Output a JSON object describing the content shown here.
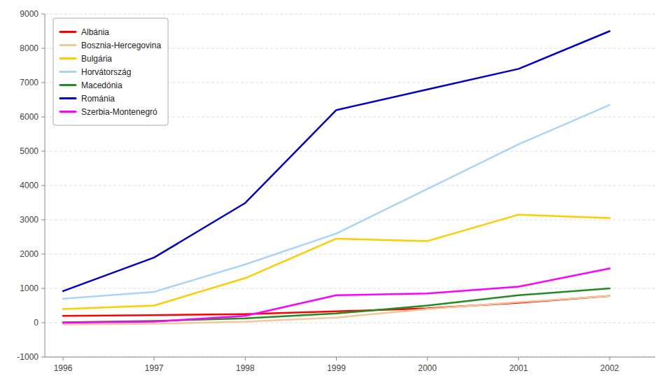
{
  "chart_data": {
    "type": "line",
    "x": [
      1996,
      1997,
      1998,
      1999,
      2000,
      2001,
      2002
    ],
    "series": [
      {
        "name": "Albánia",
        "color": "#ff0000",
        "values": [
          200,
          220,
          250,
          330,
          420,
          580,
          780
        ]
      },
      {
        "name": "Bosznia-Hercegovina",
        "color": "#f4c79a",
        "values": [
          -50,
          -30,
          30,
          150,
          400,
          600,
          780
        ]
      },
      {
        "name": "Bulgária",
        "color": "#ffcc00",
        "values": [
          400,
          500,
          1300,
          2450,
          2380,
          3150,
          3050
        ]
      },
      {
        "name": "Horvátország",
        "color": "#aad4f5",
        "values": [
          700,
          900,
          1700,
          2600,
          3900,
          5200,
          6350
        ]
      },
      {
        "name": "Macedónia",
        "color": "#228B22",
        "values": [
          10,
          50,
          130,
          270,
          500,
          800,
          1000
        ]
      },
      {
        "name": "Románia",
        "color": "#0000cc",
        "values": [
          920,
          1900,
          3490,
          6200,
          6800,
          7400,
          8500
        ]
      },
      {
        "name": "Szerbia-Montenegró",
        "color": "#ff00ff",
        "values": [
          0,
          30,
          200,
          800,
          850,
          1050,
          1580
        ]
      }
    ],
    "xlim": [
      1995.8,
      2002.5
    ],
    "xticks": [
      1996,
      1997,
      1998,
      1999,
      2000,
      2001,
      2002
    ],
    "ylim": [
      -1000,
      9000
    ],
    "yticks": [
      -1000,
      0,
      1000,
      2000,
      3000,
      4000,
      5000,
      6000,
      7000,
      8000,
      9000
    ],
    "grid": true,
    "legend": "upper left"
  }
}
